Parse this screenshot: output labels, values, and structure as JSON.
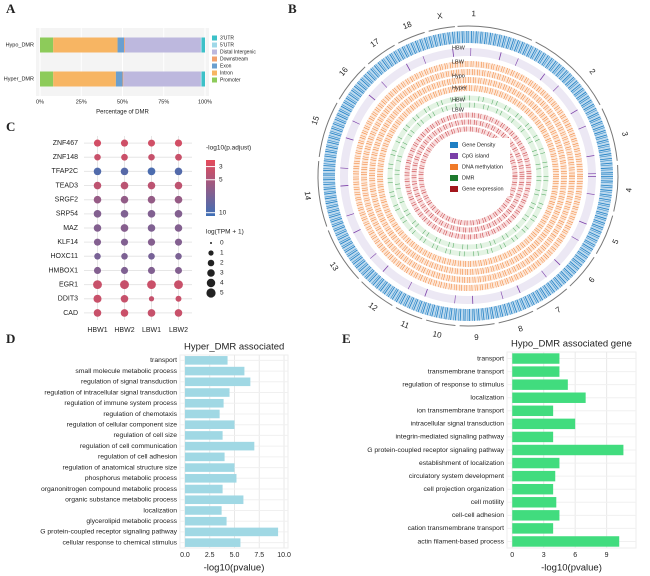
{
  "panel_labels": [
    "A",
    "B",
    "C",
    "D",
    "E"
  ],
  "chart_data": [
    {
      "type": "stacked_bar",
      "categories": [
        "Hypo_DMR",
        "Hyper_DMR"
      ],
      "series": [
        {
          "name": "3'UTR",
          "color": "#3cc1c8",
          "values": [
            2,
            2
          ]
        },
        {
          "name": "5'UTR",
          "color": "#9fd8e8",
          "values": [
            0.5,
            0.5
          ]
        },
        {
          "name": "Distal Intergenic",
          "color": "#bdb8de",
          "values": [
            46,
            47
          ]
        },
        {
          "name": "Downstream",
          "color": "#f2a06e",
          "values": [
            0.5,
            0.5
          ]
        },
        {
          "name": "Exon",
          "color": "#6a9fcf",
          "values": [
            4,
            4
          ]
        },
        {
          "name": "Intron",
          "color": "#f7b563",
          "values": [
            39,
            38
          ]
        },
        {
          "name": "Promoter",
          "color": "#8dcb5a",
          "values": [
            8,
            8
          ]
        }
      ],
      "xlabel": "Percentage of DMR",
      "xlim": [
        0,
        100
      ],
      "xticks": [
        {
          "value": 0,
          "label": "0%"
        },
        {
          "value": 25,
          "label": "25%"
        },
        {
          "value": 50,
          "label": "50%"
        },
        {
          "value": 75,
          "label": "75%"
        },
        {
          "value": 100,
          "label": "100%"
        }
      ],
      "grid": true
    },
    {
      "type": "dot",
      "categories": [
        "ZNF467",
        "ZNF148",
        "TFAP2C",
        "TEAD3",
        "SRGF2",
        "SRP54",
        "MAZ",
        "KLF14",
        "HOXC11",
        "HMBOX1",
        "EGR1",
        "DDIT3",
        "CAD"
      ],
      "x": [
        "HBW1",
        "HBW2",
        "LBW1",
        "LBW2"
      ],
      "color_label": "-log10(p.adjust)",
      "color_values": [
        [
          3,
          3.2,
          3.1,
          3
        ],
        [
          3.5,
          3.4,
          3.6,
          3.5
        ],
        [
          9.5,
          9.2,
          9.8,
          9.4
        ],
        [
          4,
          4.2,
          4.1,
          4
        ],
        [
          6,
          6.2,
          6.1,
          6
        ],
        [
          7,
          7.2,
          7.1,
          7
        ],
        [
          7,
          6.8,
          7.2,
          7
        ],
        [
          7,
          7.1,
          6.9,
          7
        ],
        [
          7.5,
          7.3,
          7.6,
          7.4
        ],
        [
          7,
          7.2,
          7.1,
          7
        ],
        [
          3.5,
          3.6,
          3.4,
          3.5
        ],
        [
          3.5,
          3.6,
          3.7,
          3.5
        ],
        [
          3.5,
          3.4,
          3.6,
          3.5
        ]
      ],
      "size_label": "log(TPM + 1)",
      "size_values": [
        [
          2.5,
          2.5,
          2.4,
          2.6
        ],
        [
          2,
          2.1,
          2,
          2.2
        ],
        [
          3,
          3,
          3.1,
          3
        ],
        [
          3,
          3.1,
          3,
          3
        ],
        [
          3,
          3,
          3,
          3.1
        ],
        [
          3,
          3,
          3,
          3
        ],
        [
          3,
          3.1,
          3,
          3
        ],
        [
          2.5,
          2.5,
          2.6,
          2.5
        ],
        [
          2,
          2,
          2.1,
          2
        ],
        [
          2.5,
          2.5,
          2.5,
          2.4
        ],
        [
          4.5,
          4.6,
          4.4,
          4.5
        ],
        [
          3.5,
          3,
          1,
          1.5
        ],
        [
          3,
          3,
          3.1,
          3
        ]
      ],
      "colors": [
        "#e64a5a",
        "#3d6fb6"
      ],
      "colorlim": [
        2,
        10.5
      ],
      "colorticks": [
        3,
        5,
        10
      ],
      "sizelim": [
        0,
        5
      ],
      "sizeticks": [
        0,
        1,
        2,
        3,
        4,
        5
      ],
      "grid": true
    },
    {
      "type": "hbar",
      "title": "Hyper_DMR associated",
      "categories": [
        "transport",
        "small molecule metabolic process",
        "regulation of signal transduction",
        "regulation of intracellular signal transduction",
        "regulation of immune system process",
        "regulation of chemotaxis",
        "regulation of cellular component size",
        "regulation of cell size",
        "regulation of cell communication",
        "regulation of cell adhesion",
        "regulation of anatomical structure size",
        "phosphorus metabolic process",
        "organonitrogen compound metabolic process",
        "organic substance metabolic process",
        "localization",
        "glycerolipid metabolic process",
        "G protein-coupled receptor signaling pathway",
        "cellular response to chemical stimulus"
      ],
      "values": [
        4.3,
        6.0,
        6.6,
        4.5,
        3.9,
        3.5,
        5.0,
        3.8,
        7.0,
        4.0,
        5.0,
        5.2,
        3.8,
        5.9,
        3.7,
        4.2,
        9.4,
        5.6
      ],
      "color": "#a0d8e4",
      "xlabel": "-log10(pvalue)",
      "xlim": [
        -0.5,
        10.4
      ],
      "xticks": [
        {
          "value": 0,
          "label": "0.0"
        },
        {
          "value": 2.5,
          "label": "2.5"
        },
        {
          "value": 5,
          "label": "5.0"
        },
        {
          "value": 7.5,
          "label": "7.5"
        },
        {
          "value": 10,
          "label": "10.0"
        }
      ],
      "grid": true
    },
    {
      "type": "hbar",
      "title": "Hypo_DMR associated gene",
      "categories": [
        "transport",
        "transmembrane transport",
        "regulation of response to stimulus",
        "localization",
        "ion transmembrane transport",
        "intracellular signal transduction",
        "integrin-mediated signaling pathway",
        "G protein-coupled receptor signaling pathway",
        "establishment of localization",
        "circulatory system development",
        "cell projection organization",
        "cell motility",
        "cell-cell adhesion",
        "cation transmembrane transport",
        "actin filament-based process"
      ],
      "values": [
        4.5,
        4.5,
        5.3,
        7.0,
        3.9,
        6.0,
        3.9,
        10.6,
        4.5,
        4.1,
        3.9,
        4.2,
        4.5,
        3.9,
        10.2
      ],
      "color": "#41dc7e",
      "xlabel": "-log10(pvalue)",
      "xlim": [
        -0.5,
        11.8
      ],
      "xticks": [
        0,
        3,
        6,
        9
      ],
      "grid": true
    }
  ],
  "circos": {
    "chromosomes": [
      "1",
      "2",
      "3",
      "4",
      "5",
      "6",
      "7",
      "8",
      "9",
      "10",
      "11",
      "12",
      "13",
      "14",
      "15",
      "16",
      "17",
      "18",
      "X"
    ],
    "tracks": [
      "HBW",
      "LBW",
      "Hypo",
      "Hyper",
      "HBW",
      "LBW"
    ],
    "legend": [
      {
        "name": "Gene Density",
        "color": "#1f7fc4"
      },
      {
        "name": "CpG island",
        "color": "#7b3fa8"
      },
      {
        "name": "DNA methylation",
        "color": "#f07a28"
      },
      {
        "name": "DMR",
        "color": "#1e7a2e"
      },
      {
        "name": "Gene expression",
        "color": "#a3161c"
      }
    ]
  }
}
